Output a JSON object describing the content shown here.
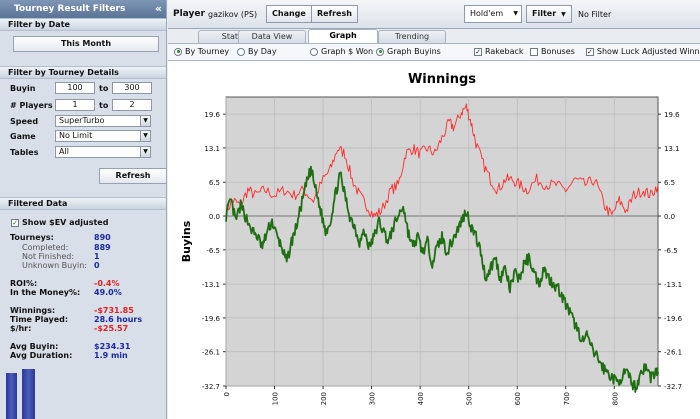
{
  "left_panel": {
    "title": "Tourney Result Filters",
    "collapse_glyph": "«",
    "filter_by_date": {
      "heading": "Filter by Date",
      "button_label": "This Month"
    },
    "filter_by_tourney": {
      "heading": "Filter by Tourney Details",
      "buyin_label": "Buyin",
      "buyin_from": "100",
      "buyin_to": "300",
      "to_label": "to",
      "players_label": "# Players",
      "players_from": "1",
      "players_to": "2",
      "speed_label": "Speed",
      "speed_value": "SuperTurbo",
      "game_label": "Game",
      "game_value": "No Limit",
      "tables_label": "Tables",
      "tables_value": "All",
      "refresh_label": "Refresh"
    },
    "filtered_data": {
      "heading": "Filtered Data",
      "show_sev_label": "Show $EV adjusted",
      "show_sev_checked": true,
      "stats": [
        {
          "label": "Tourneys:",
          "value": "890",
          "sub": false,
          "red": false
        },
        {
          "label": "Completed:",
          "value": "889",
          "sub": true,
          "red": false
        },
        {
          "label": "Not Finished:",
          "value": "1",
          "sub": true,
          "red": false
        },
        {
          "label": "Unknown Buyin:",
          "value": "0",
          "sub": true,
          "red": false
        },
        {
          "label": "ROI%:",
          "value": "-0.4%",
          "sub": false,
          "red": true
        },
        {
          "label": "In the Money%:",
          "value": "49.0%",
          "sub": false,
          "red": false
        },
        {
          "label": "Winnings:",
          "value": "-$731.85",
          "sub": false,
          "red": true
        },
        {
          "label": "Time Played:",
          "value": "28.6 hours",
          "sub": false,
          "red": false
        },
        {
          "label": "$/hr:",
          "value": "-$25.57",
          "sub": false,
          "red": true
        },
        {
          "label": "Avg Buyin:",
          "value": "$234.31",
          "sub": false,
          "red": false
        },
        {
          "label": "Avg Duration:",
          "value": "1.9 min",
          "sub": false,
          "red": false
        }
      ]
    }
  },
  "topbar": {
    "player_label": "Player",
    "player_value": "gazikov (PS)",
    "change_label": "Change",
    "refresh_label": "Refresh",
    "game_select": "Hold'em",
    "filter_label": "Filter",
    "filter_status": "No Filter"
  },
  "tabs": [
    {
      "label": "Stats",
      "active": false
    },
    {
      "label": "Data View",
      "active": false
    },
    {
      "label": "Graph",
      "active": true
    },
    {
      "label": "Trending",
      "active": false
    }
  ],
  "options": {
    "by_tourney": "By Tourney",
    "by_day": "By Day",
    "graph_won": "Graph $ Won",
    "graph_buyins": "Graph Buyins",
    "rakeback": "Rakeback",
    "bonuses": "Bonuses",
    "show_luck": "Show Luck Adjusted Winnings"
  },
  "colors": {
    "actual": "#1f6e12",
    "ev": "#ff2b2b",
    "plot_bg": "#d4d4d4"
  },
  "chart_data": {
    "type": "line",
    "title": "Winnings",
    "ylabel": "Buyins",
    "xlabel": "",
    "xlim": [
      0,
      890
    ],
    "ylim": [
      -32.7,
      22.9
    ],
    "y_ticks": [
      "19.6",
      "13.1",
      "6.5",
      "0.0",
      "-6.5",
      "-13.1",
      "-19.6",
      "-26.1",
      "-32.7"
    ],
    "x_ticks": [
      "0",
      "100",
      "200",
      "300",
      "400",
      "500",
      "600",
      "700",
      "800"
    ],
    "series": [
      {
        "key": "ev",
        "points": [
          [
            0,
            1
          ],
          [
            15,
            3
          ],
          [
            30,
            2
          ],
          [
            45,
            5
          ],
          [
            60,
            4
          ],
          [
            80,
            5
          ],
          [
            100,
            4
          ],
          [
            120,
            5
          ],
          [
            140,
            4
          ],
          [
            160,
            5
          ],
          [
            180,
            3
          ],
          [
            200,
            7
          ],
          [
            215,
            9
          ],
          [
            230,
            13
          ],
          [
            245,
            12
          ],
          [
            260,
            7
          ],
          [
            275,
            4
          ],
          [
            290,
            2
          ],
          [
            305,
            0
          ],
          [
            320,
            1
          ],
          [
            340,
            5
          ],
          [
            355,
            6
          ],
          [
            370,
            12
          ],
          [
            385,
            13
          ],
          [
            400,
            12
          ],
          [
            415,
            13
          ],
          [
            430,
            12
          ],
          [
            445,
            15
          ],
          [
            460,
            18
          ],
          [
            470,
            17
          ],
          [
            485,
            20
          ],
          [
            495,
            21
          ],
          [
            505,
            18
          ],
          [
            515,
            14
          ],
          [
            530,
            10
          ],
          [
            545,
            7
          ],
          [
            560,
            5
          ],
          [
            575,
            7
          ],
          [
            590,
            7
          ],
          [
            605,
            6
          ],
          [
            620,
            5
          ],
          [
            640,
            7
          ],
          [
            660,
            6
          ],
          [
            680,
            6
          ],
          [
            700,
            5
          ],
          [
            720,
            7
          ],
          [
            740,
            6
          ],
          [
            760,
            7
          ],
          [
            780,
            2
          ],
          [
            795,
            0
          ],
          [
            810,
            3
          ],
          [
            825,
            1
          ],
          [
            840,
            4
          ],
          [
            860,
            5
          ],
          [
            875,
            4
          ],
          [
            890,
            6
          ]
        ]
      },
      {
        "key": "actual",
        "points": [
          [
            0,
            0
          ],
          [
            10,
            3
          ],
          [
            20,
            -1
          ],
          [
            30,
            2
          ],
          [
            40,
            0
          ],
          [
            55,
            -3
          ],
          [
            65,
            -4
          ],
          [
            75,
            -6
          ],
          [
            85,
            -3
          ],
          [
            95,
            -1
          ],
          [
            105,
            -4
          ],
          [
            115,
            -6
          ],
          [
            125,
            -9
          ],
          [
            135,
            -5
          ],
          [
            145,
            -2
          ],
          [
            155,
            2
          ],
          [
            165,
            6
          ],
          [
            175,
            9
          ],
          [
            185,
            5
          ],
          [
            195,
            1
          ],
          [
            205,
            -3
          ],
          [
            215,
            -1
          ],
          [
            225,
            4
          ],
          [
            235,
            8
          ],
          [
            245,
            4
          ],
          [
            255,
            0
          ],
          [
            265,
            -2
          ],
          [
            275,
            -5
          ],
          [
            285,
            -3
          ],
          [
            295,
            -6
          ],
          [
            305,
            -4
          ],
          [
            315,
            -1
          ],
          [
            325,
            -3
          ],
          [
            335,
            -5
          ],
          [
            345,
            -2
          ],
          [
            355,
            0
          ],
          [
            365,
            2
          ],
          [
            375,
            -3
          ],
          [
            385,
            -6
          ],
          [
            395,
            -4
          ],
          [
            405,
            -7
          ],
          [
            415,
            -5
          ],
          [
            425,
            -9
          ],
          [
            435,
            -6
          ],
          [
            445,
            -4
          ],
          [
            455,
            -7
          ],
          [
            465,
            -5
          ],
          [
            475,
            -3
          ],
          [
            485,
            -1
          ],
          [
            495,
            1
          ],
          [
            505,
            -2
          ],
          [
            515,
            -4
          ],
          [
            525,
            -7
          ],
          [
            535,
            -12
          ],
          [
            545,
            -10
          ],
          [
            555,
            -8
          ],
          [
            565,
            -12
          ],
          [
            575,
            -10
          ],
          [
            585,
            -14
          ],
          [
            595,
            -11
          ],
          [
            605,
            -12
          ],
          [
            615,
            -9
          ],
          [
            625,
            -8
          ],
          [
            635,
            -11
          ],
          [
            645,
            -13
          ],
          [
            655,
            -10
          ],
          [
            665,
            -12
          ],
          [
            675,
            -13
          ],
          [
            685,
            -14
          ],
          [
            695,
            -16
          ],
          [
            705,
            -18
          ],
          [
            715,
            -20
          ],
          [
            725,
            -22
          ],
          [
            735,
            -24
          ],
          [
            745,
            -23
          ],
          [
            755,
            -26
          ],
          [
            765,
            -27
          ],
          [
            775,
            -29
          ],
          [
            785,
            -30
          ],
          [
            795,
            -31
          ],
          [
            805,
            -32
          ],
          [
            815,
            -31
          ],
          [
            825,
            -30
          ],
          [
            835,
            -32
          ],
          [
            845,
            -33
          ],
          [
            855,
            -30
          ],
          [
            865,
            -29
          ],
          [
            875,
            -31
          ],
          [
            885,
            -30
          ],
          [
            890,
            -30
          ]
        ]
      }
    ],
    "grid": true
  }
}
